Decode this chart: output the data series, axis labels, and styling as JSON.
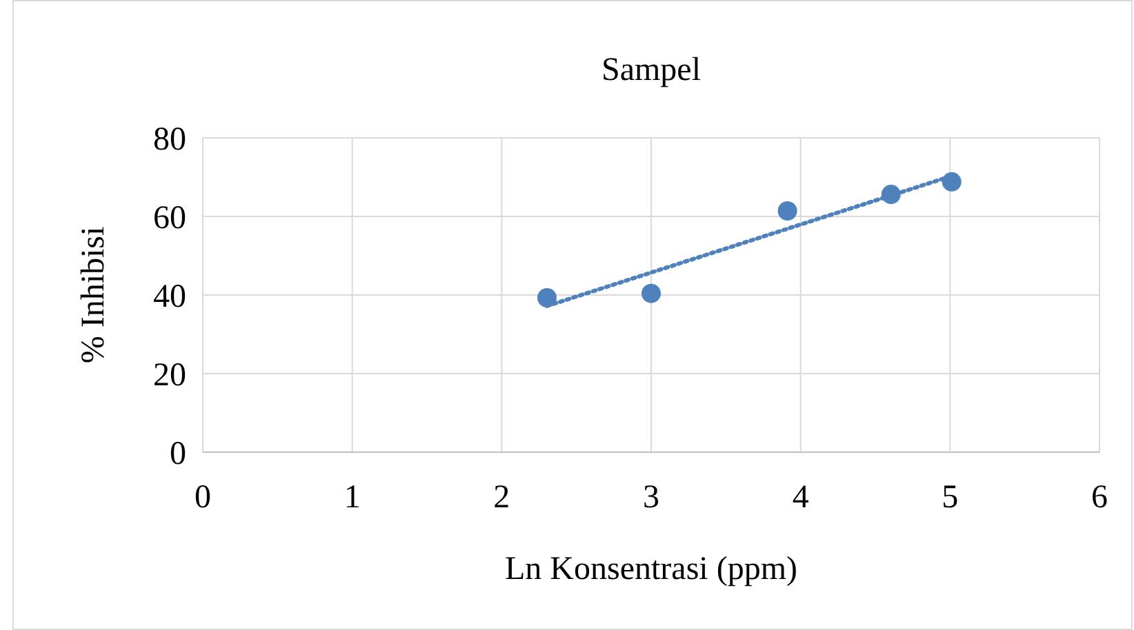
{
  "chart_data": {
    "type": "scatter",
    "title": "Sampel",
    "xlabel": "Ln Konsentrasi (ppm)",
    "ylabel": "% Inhibisi",
    "xlim": [
      0,
      6
    ],
    "xticks": [
      0,
      1,
      2,
      3,
      4,
      5,
      6
    ],
    "ylim": [
      0,
      80
    ],
    "yticks": [
      0,
      20,
      40,
      60,
      80
    ],
    "grid": true,
    "series": [
      {
        "color": "#4f81bd",
        "marker": "circle",
        "x": [
          2.303,
          3.0,
          3.912,
          4.605,
          5.011
        ],
        "values": [
          39.3,
          40.4,
          61.4,
          65.6,
          68.8
        ]
      },
      {
        "type": "line",
        "color": "#4f81bd",
        "line_style": "dotted",
        "x": [
          2.303,
          5.011
        ],
        "values": [
          37.2,
          70.3
        ]
      }
    ]
  }
}
